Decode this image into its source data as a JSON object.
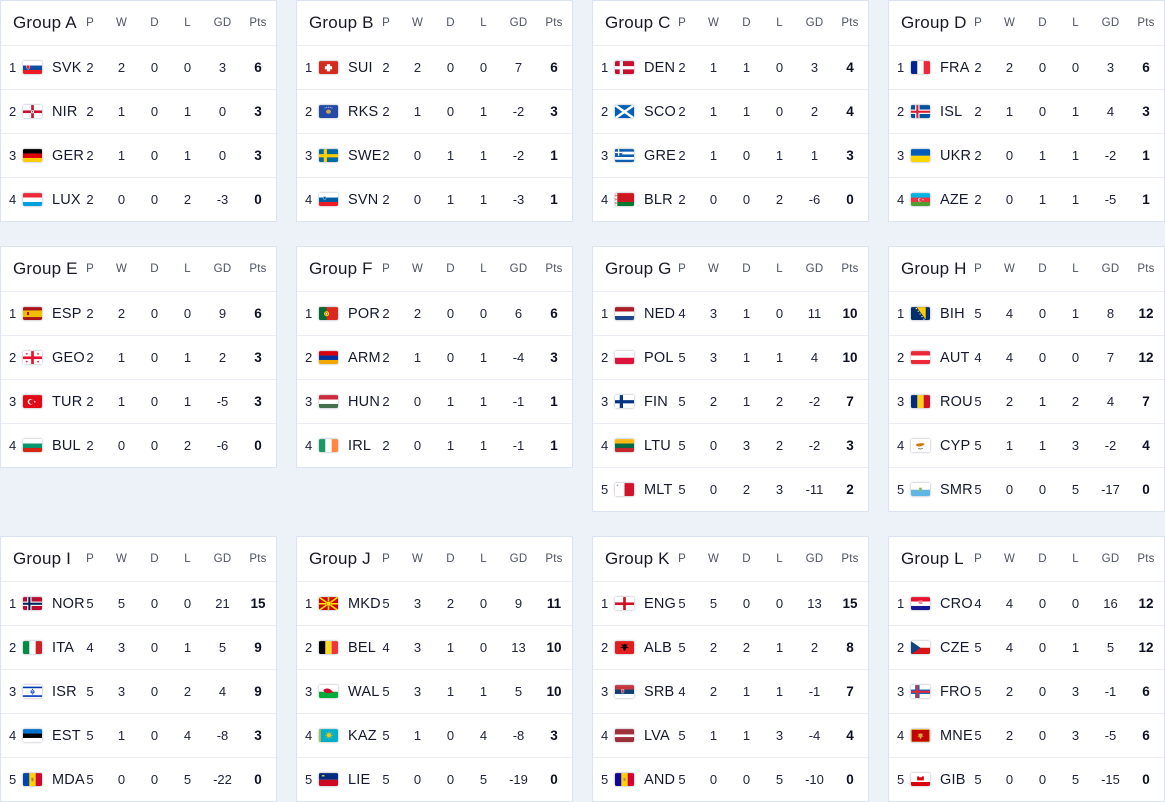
{
  "page": {
    "background": "#edf1f8",
    "card_background": "#ffffff"
  },
  "colors": {
    "card_border": "#dbe2f0",
    "row_separator": "#e9ecf3",
    "title_text": "#191a24",
    "column_header_text": "#4c5165",
    "stat_text": "#20243a",
    "points_text": "#0d1022"
  },
  "headers": {
    "p": "P",
    "w": "W",
    "d": "D",
    "l": "L",
    "gd": "GD",
    "pts": "Pts"
  },
  "groups": [
    {
      "title": "Group A",
      "teams": [
        {
          "rank": "1",
          "code": "SVK",
          "flag_icon": "flag-icon-svk",
          "p": "2",
          "w": "2",
          "d": "0",
          "l": "0",
          "gd": "3",
          "pts": "6"
        },
        {
          "rank": "2",
          "code": "NIR",
          "flag_icon": "flag-icon-nir",
          "p": "2",
          "w": "1",
          "d": "0",
          "l": "1",
          "gd": "0",
          "pts": "3"
        },
        {
          "rank": "3",
          "code": "GER",
          "flag_icon": "flag-icon-ger",
          "p": "2",
          "w": "1",
          "d": "0",
          "l": "1",
          "gd": "0",
          "pts": "3"
        },
        {
          "rank": "4",
          "code": "LUX",
          "flag_icon": "flag-icon-lux",
          "p": "2",
          "w": "0",
          "d": "0",
          "l": "2",
          "gd": "-3",
          "pts": "0"
        }
      ]
    },
    {
      "title": "Group B",
      "teams": [
        {
          "rank": "1",
          "code": "SUI",
          "flag_icon": "flag-icon-sui",
          "p": "2",
          "w": "2",
          "d": "0",
          "l": "0",
          "gd": "7",
          "pts": "6"
        },
        {
          "rank": "2",
          "code": "RKS",
          "flag_icon": "flag-icon-rks",
          "p": "2",
          "w": "1",
          "d": "0",
          "l": "1",
          "gd": "-2",
          "pts": "3"
        },
        {
          "rank": "3",
          "code": "SWE",
          "flag_icon": "flag-icon-swe",
          "p": "2",
          "w": "0",
          "d": "1",
          "l": "1",
          "gd": "-2",
          "pts": "1"
        },
        {
          "rank": "4",
          "code": "SVN",
          "flag_icon": "flag-icon-svn",
          "p": "2",
          "w": "0",
          "d": "1",
          "l": "1",
          "gd": "-3",
          "pts": "1"
        }
      ]
    },
    {
      "title": "Group C",
      "teams": [
        {
          "rank": "1",
          "code": "DEN",
          "flag_icon": "flag-icon-den",
          "p": "2",
          "w": "1",
          "d": "1",
          "l": "0",
          "gd": "3",
          "pts": "4"
        },
        {
          "rank": "2",
          "code": "SCO",
          "flag_icon": "flag-icon-sco",
          "p": "2",
          "w": "1",
          "d": "1",
          "l": "0",
          "gd": "2",
          "pts": "4"
        },
        {
          "rank": "3",
          "code": "GRE",
          "flag_icon": "flag-icon-gre",
          "p": "2",
          "w": "1",
          "d": "0",
          "l": "1",
          "gd": "1",
          "pts": "3"
        },
        {
          "rank": "4",
          "code": "BLR",
          "flag_icon": "flag-icon-blr",
          "p": "2",
          "w": "0",
          "d": "0",
          "l": "2",
          "gd": "-6",
          "pts": "0"
        }
      ]
    },
    {
      "title": "Group D",
      "teams": [
        {
          "rank": "1",
          "code": "FRA",
          "flag_icon": "flag-icon-fra",
          "p": "2",
          "w": "2",
          "d": "0",
          "l": "0",
          "gd": "3",
          "pts": "6"
        },
        {
          "rank": "2",
          "code": "ISL",
          "flag_icon": "flag-icon-isl",
          "p": "2",
          "w": "1",
          "d": "0",
          "l": "1",
          "gd": "4",
          "pts": "3"
        },
        {
          "rank": "3",
          "code": "UKR",
          "flag_icon": "flag-icon-ukr",
          "p": "2",
          "w": "0",
          "d": "1",
          "l": "1",
          "gd": "-2",
          "pts": "1"
        },
        {
          "rank": "4",
          "code": "AZE",
          "flag_icon": "flag-icon-aze",
          "p": "2",
          "w": "0",
          "d": "1",
          "l": "1",
          "gd": "-5",
          "pts": "1"
        }
      ]
    },
    {
      "title": "Group E",
      "teams": [
        {
          "rank": "1",
          "code": "ESP",
          "flag_icon": "flag-icon-esp",
          "p": "2",
          "w": "2",
          "d": "0",
          "l": "0",
          "gd": "9",
          "pts": "6"
        },
        {
          "rank": "2",
          "code": "GEO",
          "flag_icon": "flag-icon-geo",
          "p": "2",
          "w": "1",
          "d": "0",
          "l": "1",
          "gd": "2",
          "pts": "3"
        },
        {
          "rank": "3",
          "code": "TUR",
          "flag_icon": "flag-icon-tur",
          "p": "2",
          "w": "1",
          "d": "0",
          "l": "1",
          "gd": "-5",
          "pts": "3"
        },
        {
          "rank": "4",
          "code": "BUL",
          "flag_icon": "flag-icon-bul",
          "p": "2",
          "w": "0",
          "d": "0",
          "l": "2",
          "gd": "-6",
          "pts": "0"
        }
      ]
    },
    {
      "title": "Group F",
      "teams": [
        {
          "rank": "1",
          "code": "POR",
          "flag_icon": "flag-icon-por",
          "p": "2",
          "w": "2",
          "d": "0",
          "l": "0",
          "gd": "6",
          "pts": "6"
        },
        {
          "rank": "2",
          "code": "ARM",
          "flag_icon": "flag-icon-arm",
          "p": "2",
          "w": "1",
          "d": "0",
          "l": "1",
          "gd": "-4",
          "pts": "3"
        },
        {
          "rank": "3",
          "code": "HUN",
          "flag_icon": "flag-icon-hun",
          "p": "2",
          "w": "0",
          "d": "1",
          "l": "1",
          "gd": "-1",
          "pts": "1"
        },
        {
          "rank": "4",
          "code": "IRL",
          "flag_icon": "flag-icon-irl",
          "p": "2",
          "w": "0",
          "d": "1",
          "l": "1",
          "gd": "-1",
          "pts": "1"
        }
      ]
    },
    {
      "title": "Group G",
      "teams": [
        {
          "rank": "1",
          "code": "NED",
          "flag_icon": "flag-icon-ned",
          "p": "4",
          "w": "3",
          "d": "1",
          "l": "0",
          "gd": "11",
          "pts": "10"
        },
        {
          "rank": "2",
          "code": "POL",
          "flag_icon": "flag-icon-pol",
          "p": "5",
          "w": "3",
          "d": "1",
          "l": "1",
          "gd": "4",
          "pts": "10"
        },
        {
          "rank": "3",
          "code": "FIN",
          "flag_icon": "flag-icon-fin",
          "p": "5",
          "w": "2",
          "d": "1",
          "l": "2",
          "gd": "-2",
          "pts": "7"
        },
        {
          "rank": "4",
          "code": "LTU",
          "flag_icon": "flag-icon-ltu",
          "p": "5",
          "w": "0",
          "d": "3",
          "l": "2",
          "gd": "-2",
          "pts": "3"
        },
        {
          "rank": "5",
          "code": "MLT",
          "flag_icon": "flag-icon-mlt",
          "p": "5",
          "w": "0",
          "d": "2",
          "l": "3",
          "gd": "-11",
          "pts": "2"
        }
      ]
    },
    {
      "title": "Group H",
      "teams": [
        {
          "rank": "1",
          "code": "BIH",
          "flag_icon": "flag-icon-bih",
          "p": "5",
          "w": "4",
          "d": "0",
          "l": "1",
          "gd": "8",
          "pts": "12"
        },
        {
          "rank": "2",
          "code": "AUT",
          "flag_icon": "flag-icon-aut",
          "p": "4",
          "w": "4",
          "d": "0",
          "l": "0",
          "gd": "7",
          "pts": "12"
        },
        {
          "rank": "3",
          "code": "ROU",
          "flag_icon": "flag-icon-rou",
          "p": "5",
          "w": "2",
          "d": "1",
          "l": "2",
          "gd": "4",
          "pts": "7"
        },
        {
          "rank": "4",
          "code": "CYP",
          "flag_icon": "flag-icon-cyp",
          "p": "5",
          "w": "1",
          "d": "1",
          "l": "3",
          "gd": "-2",
          "pts": "4"
        },
        {
          "rank": "5",
          "code": "SMR",
          "flag_icon": "flag-icon-smr",
          "p": "5",
          "w": "0",
          "d": "0",
          "l": "5",
          "gd": "-17",
          "pts": "0"
        }
      ]
    },
    {
      "title": "Group I",
      "teams": [
        {
          "rank": "1",
          "code": "NOR",
          "flag_icon": "flag-icon-nor",
          "p": "5",
          "w": "5",
          "d": "0",
          "l": "0",
          "gd": "21",
          "pts": "15"
        },
        {
          "rank": "2",
          "code": "ITA",
          "flag_icon": "flag-icon-ita",
          "p": "4",
          "w": "3",
          "d": "0",
          "l": "1",
          "gd": "5",
          "pts": "9"
        },
        {
          "rank": "3",
          "code": "ISR",
          "flag_icon": "flag-icon-isr",
          "p": "5",
          "w": "3",
          "d": "0",
          "l": "2",
          "gd": "4",
          "pts": "9"
        },
        {
          "rank": "4",
          "code": "EST",
          "flag_icon": "flag-icon-est",
          "p": "5",
          "w": "1",
          "d": "0",
          "l": "4",
          "gd": "-8",
          "pts": "3"
        },
        {
          "rank": "5",
          "code": "MDA",
          "flag_icon": "flag-icon-mda",
          "p": "5",
          "w": "0",
          "d": "0",
          "l": "5",
          "gd": "-22",
          "pts": "0"
        }
      ]
    },
    {
      "title": "Group J",
      "teams": [
        {
          "rank": "1",
          "code": "MKD",
          "flag_icon": "flag-icon-mkd",
          "p": "5",
          "w": "3",
          "d": "2",
          "l": "0",
          "gd": "9",
          "pts": "11"
        },
        {
          "rank": "2",
          "code": "BEL",
          "flag_icon": "flag-icon-bel",
          "p": "4",
          "w": "3",
          "d": "1",
          "l": "0",
          "gd": "13",
          "pts": "10"
        },
        {
          "rank": "3",
          "code": "WAL",
          "flag_icon": "flag-icon-wal",
          "p": "5",
          "w": "3",
          "d": "1",
          "l": "1",
          "gd": "5",
          "pts": "10"
        },
        {
          "rank": "4",
          "code": "KAZ",
          "flag_icon": "flag-icon-kaz",
          "p": "5",
          "w": "1",
          "d": "0",
          "l": "4",
          "gd": "-8",
          "pts": "3"
        },
        {
          "rank": "5",
          "code": "LIE",
          "flag_icon": "flag-icon-lie",
          "p": "5",
          "w": "0",
          "d": "0",
          "l": "5",
          "gd": "-19",
          "pts": "0"
        }
      ]
    },
    {
      "title": "Group K",
      "teams": [
        {
          "rank": "1",
          "code": "ENG",
          "flag_icon": "flag-icon-eng",
          "p": "5",
          "w": "5",
          "d": "0",
          "l": "0",
          "gd": "13",
          "pts": "15"
        },
        {
          "rank": "2",
          "code": "ALB",
          "flag_icon": "flag-icon-alb",
          "p": "5",
          "w": "2",
          "d": "2",
          "l": "1",
          "gd": "2",
          "pts": "8"
        },
        {
          "rank": "3",
          "code": "SRB",
          "flag_icon": "flag-icon-srb",
          "p": "4",
          "w": "2",
          "d": "1",
          "l": "1",
          "gd": "-1",
          "pts": "7"
        },
        {
          "rank": "4",
          "code": "LVA",
          "flag_icon": "flag-icon-lva",
          "p": "5",
          "w": "1",
          "d": "1",
          "l": "3",
          "gd": "-4",
          "pts": "4"
        },
        {
          "rank": "5",
          "code": "AND",
          "flag_icon": "flag-icon-and",
          "p": "5",
          "w": "0",
          "d": "0",
          "l": "5",
          "gd": "-10",
          "pts": "0"
        }
      ]
    },
    {
      "title": "Group L",
      "teams": [
        {
          "rank": "1",
          "code": "CRO",
          "flag_icon": "flag-icon-cro",
          "p": "4",
          "w": "4",
          "d": "0",
          "l": "0",
          "gd": "16",
          "pts": "12"
        },
        {
          "rank": "2",
          "code": "CZE",
          "flag_icon": "flag-icon-cze",
          "p": "5",
          "w": "4",
          "d": "0",
          "l": "1",
          "gd": "5",
          "pts": "12"
        },
        {
          "rank": "3",
          "code": "FRO",
          "flag_icon": "flag-icon-fro",
          "p": "5",
          "w": "2",
          "d": "0",
          "l": "3",
          "gd": "-1",
          "pts": "6"
        },
        {
          "rank": "4",
          "code": "MNE",
          "flag_icon": "flag-icon-mne",
          "p": "5",
          "w": "2",
          "d": "0",
          "l": "3",
          "gd": "-5",
          "pts": "6"
        },
        {
          "rank": "5",
          "code": "GIB",
          "flag_icon": "flag-icon-gib",
          "p": "5",
          "w": "0",
          "d": "0",
          "l": "5",
          "gd": "-15",
          "pts": "0"
        }
      ]
    }
  ]
}
